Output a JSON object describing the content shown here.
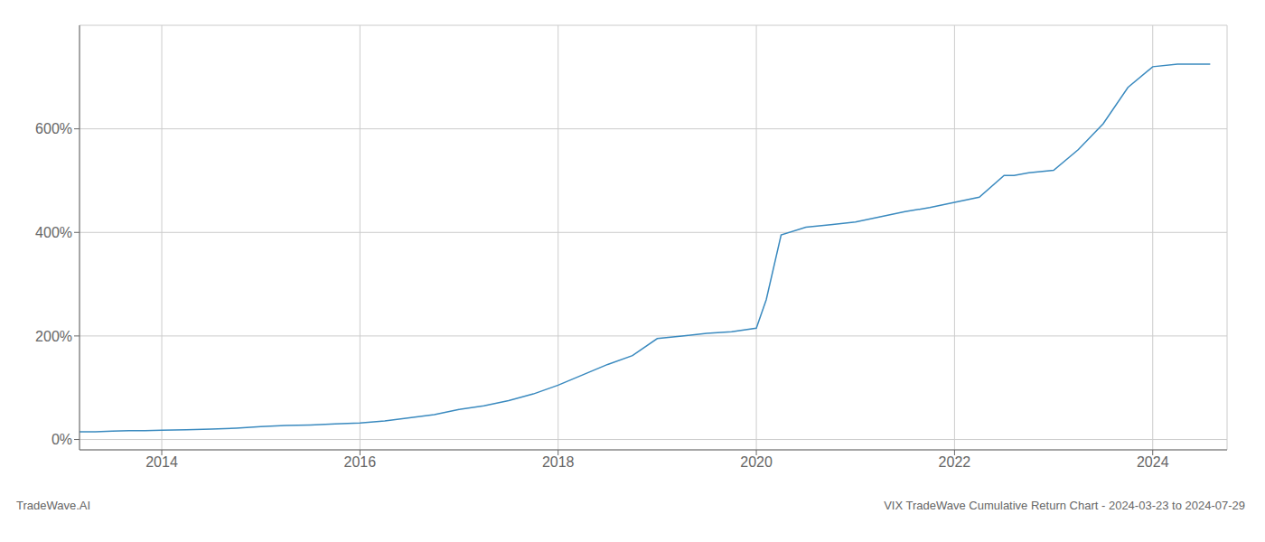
{
  "chart_data": {
    "type": "line",
    "title": "VIX TradeWave Cumulative Return Chart - 2024-03-23 to 2024-07-29",
    "annotations": [
      "TradeWave.AI"
    ],
    "x": [
      2013.17,
      2013.33,
      2013.5,
      2013.67,
      2013.83,
      2014.0,
      2014.25,
      2014.5,
      2014.75,
      2015.0,
      2015.25,
      2015.5,
      2015.75,
      2016.0,
      2016.25,
      2016.5,
      2016.75,
      2017.0,
      2017.25,
      2017.5,
      2017.75,
      2018.0,
      2018.25,
      2018.5,
      2018.75,
      2019.0,
      2019.25,
      2019.5,
      2019.75,
      2020.0,
      2020.1,
      2020.25,
      2020.5,
      2020.75,
      2021.0,
      2021.25,
      2021.5,
      2021.75,
      2022.0,
      2022.25,
      2022.5,
      2022.6,
      2022.75,
      2023.0,
      2023.25,
      2023.5,
      2023.75,
      2024.0,
      2024.25,
      2024.58
    ],
    "values": [
      15,
      15,
      16,
      17,
      17,
      18,
      19,
      20,
      22,
      25,
      27,
      28,
      30,
      32,
      36,
      42,
      48,
      58,
      65,
      75,
      88,
      105,
      125,
      145,
      162,
      195,
      200,
      205,
      208,
      215,
      270,
      395,
      410,
      415,
      420,
      430,
      440,
      448,
      458,
      468,
      510,
      510,
      515,
      520,
      560,
      610,
      680,
      720,
      725,
      725
    ],
    "color": "#3a8abf",
    "xlim": [
      2013.17,
      2024.75
    ],
    "ylim": [
      -20,
      800
    ],
    "xticks": [
      2014,
      2016,
      2018,
      2020,
      2022,
      2024
    ],
    "yticks": [
      {
        "value": 0,
        "label": "0%"
      },
      {
        "value": 200,
        "label": "200%"
      },
      {
        "value": 400,
        "label": "400%"
      },
      {
        "value": 600,
        "label": "600%"
      }
    ],
    "grid": true
  }
}
